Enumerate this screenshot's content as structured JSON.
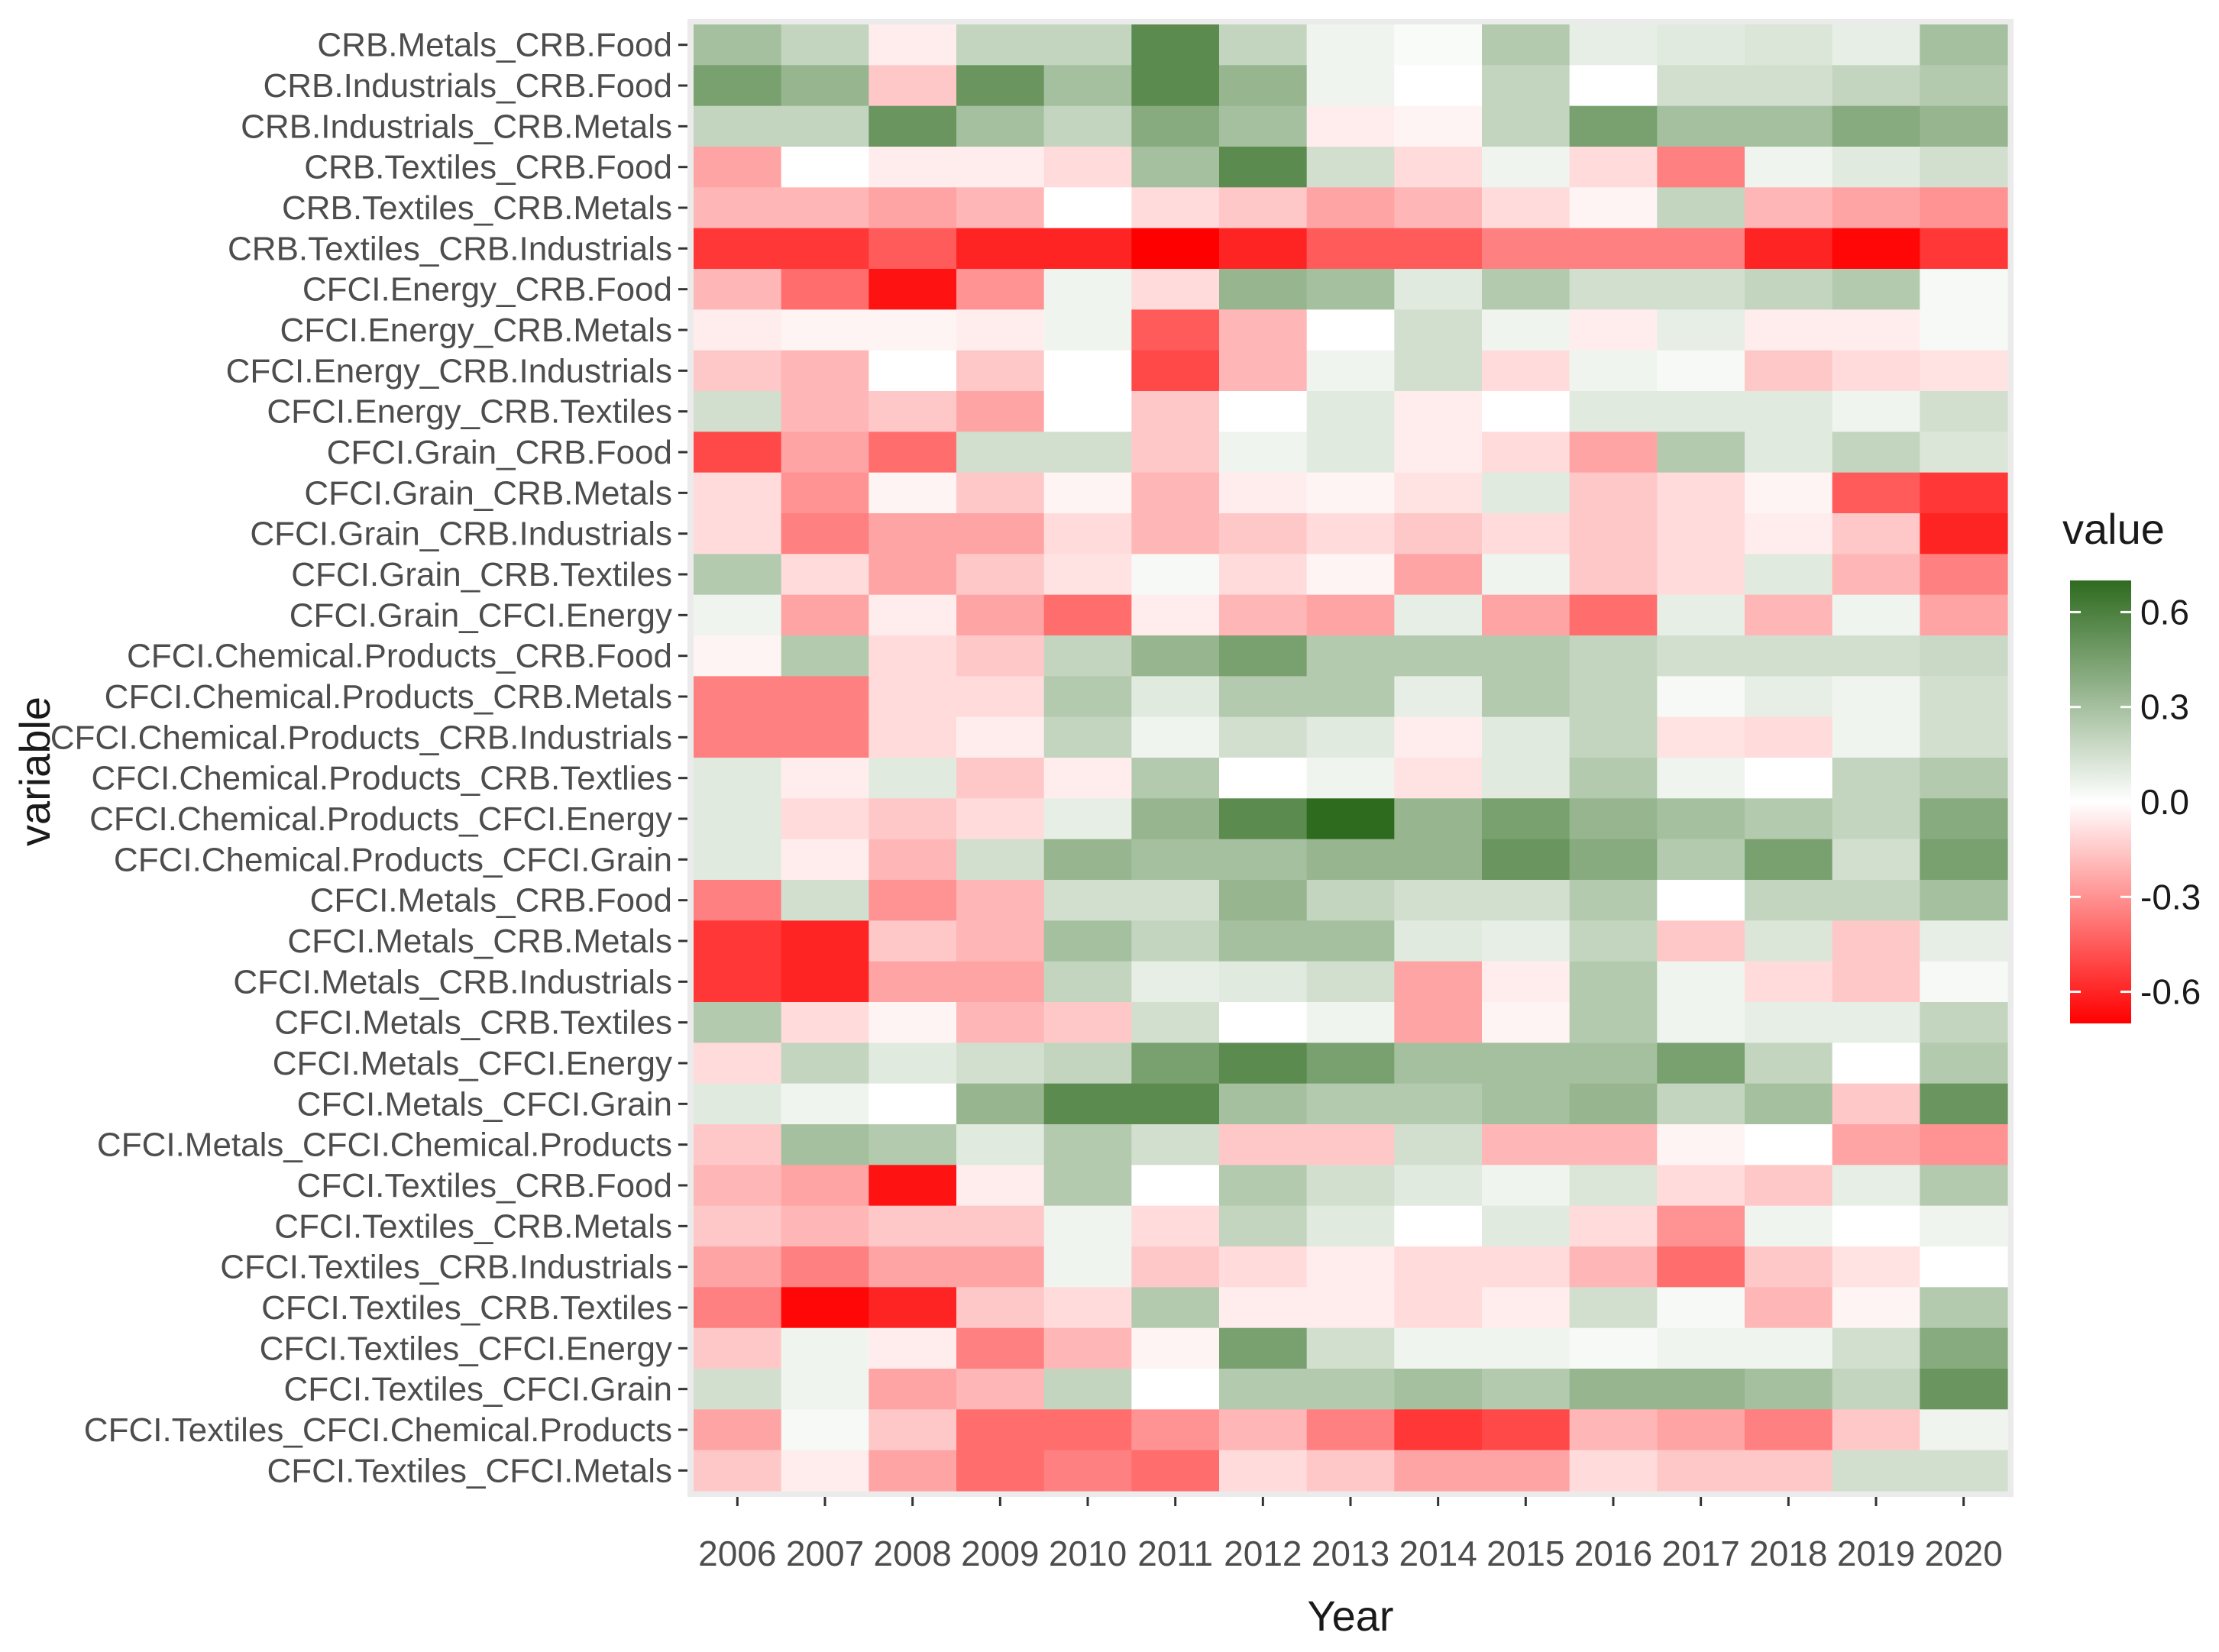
{
  "chart_data": {
    "type": "heatmap",
    "xlabel": "Year",
    "ylabel": "variable",
    "legend_title": "value",
    "legend_position": "right",
    "colorscale": {
      "low": "#ff0000",
      "mid": "#ffffff",
      "high": "#2e6b1f",
      "min": -0.7,
      "max": 0.7
    },
    "legend_ticks": [
      0.6,
      0.3,
      0.0,
      -0.3,
      -0.6
    ],
    "legend_tick_labels": [
      "0.6",
      "0.3",
      "0.0",
      "-0.3",
      "-0.6"
    ],
    "x": [
      "2006",
      "2007",
      "2008",
      "2009",
      "2010",
      "2011",
      "2012",
      "2013",
      "2014",
      "2015",
      "2016",
      "2017",
      "2018",
      "2019",
      "2020"
    ],
    "y": [
      "CRB.Metals_CRB.Food",
      "CRB.Industrials_CRB.Food",
      "CRB.Industrials_CRB.Metals",
      "CRB.Textiles_CRB.Food",
      "CRB.Textiles_CRB.Metals",
      "CRB.Textiles_CRB.Industrials",
      "CFCI.Energy_CRB.Food",
      "CFCI.Energy_CRB.Metals",
      "CFCI.Energy_CRB.Industrials",
      "CFCI.Energy_CRB.Textiles",
      "CFCI.Grain_CRB.Food",
      "CFCI.Grain_CRB.Metals",
      "CFCI.Grain_CRB.Industrials",
      "CFCI.Grain_CRB.Textiles",
      "CFCI.Grain_CFCI.Energy",
      "CFCI.Chemical.Products_CRB.Food",
      "CFCI.Chemical.Products_CRB.Metals",
      "CFCI.Chemical.Products_CRB.Industrials",
      "CFCI.Chemical.Products_CRB.Textlies",
      "CFCI.Chemical.Products_CFCI.Energy",
      "CFCI.Chemical.Products_CFCI.Grain",
      "CFCI.Metals_CRB.Food",
      "CFCI.Metals_CRB.Metals",
      "CFCI.Metals_CRB.Industrials",
      "CFCI.Metals_CRB.Textiles",
      "CFCI.Metals_CFCI.Energy",
      "CFCI.Metals_CFCI.Grain",
      "CFCI.Metals_CFCI.Chemical.Products",
      "CFCI.Textiles_CRB.Food",
      "CFCI.Textiles_CRB.Metals",
      "CFCI.Textiles_CRB.Industrials",
      "CFCI.Textiles_CRB.Textiles",
      "CFCI.Textiles_CFCI.Energy",
      "CFCI.Textiles_CFCI.Grain",
      "CFCI.Textiles_CFCI.Chemical.Products",
      "CFCI.Textiles_CFCI.Metals"
    ],
    "values": [
      [
        0.3,
        0.2,
        -0.05,
        0.2,
        0.2,
        0.55,
        0.2,
        0.05,
        0.02,
        0.25,
        0.08,
        0.1,
        0.12,
        0.08,
        0.3
      ],
      [
        0.45,
        0.35,
        -0.15,
        0.5,
        0.3,
        0.55,
        0.35,
        0.05,
        0.0,
        0.2,
        0.0,
        0.15,
        0.15,
        0.2,
        0.25
      ],
      [
        0.2,
        0.2,
        0.5,
        0.3,
        0.2,
        0.4,
        0.3,
        -0.05,
        -0.03,
        0.2,
        0.45,
        0.3,
        0.3,
        0.4,
        0.35
      ],
      [
        -0.25,
        0.0,
        -0.05,
        -0.05,
        -0.1,
        0.3,
        0.55,
        0.15,
        -0.1,
        0.05,
        -0.1,
        -0.35,
        0.05,
        0.1,
        0.15
      ],
      [
        -0.2,
        -0.2,
        -0.25,
        -0.2,
        0.0,
        -0.1,
        -0.15,
        -0.25,
        -0.2,
        -0.1,
        -0.03,
        0.2,
        -0.2,
        -0.25,
        -0.3
      ],
      [
        -0.55,
        -0.55,
        -0.45,
        -0.6,
        -0.6,
        -0.7,
        -0.6,
        -0.45,
        -0.45,
        -0.35,
        -0.35,
        -0.35,
        -0.6,
        -0.68,
        -0.55
      ],
      [
        -0.2,
        -0.4,
        -0.65,
        -0.3,
        0.05,
        -0.1,
        0.35,
        0.3,
        0.1,
        0.25,
        0.15,
        0.15,
        0.2,
        0.25,
        0.03
      ],
      [
        -0.05,
        -0.03,
        -0.03,
        -0.05,
        0.05,
        -0.45,
        -0.2,
        0.0,
        0.15,
        0.05,
        -0.05,
        0.08,
        -0.05,
        -0.05,
        0.03
      ],
      [
        -0.15,
        -0.2,
        0.0,
        -0.15,
        0.0,
        -0.5,
        -0.2,
        0.05,
        0.15,
        -0.1,
        0.05,
        0.03,
        -0.15,
        -0.1,
        -0.08
      ],
      [
        0.15,
        -0.2,
        -0.15,
        -0.25,
        0.0,
        -0.15,
        0.0,
        0.1,
        -0.05,
        0.0,
        0.1,
        0.1,
        0.1,
        0.05,
        0.15
      ],
      [
        -0.5,
        -0.25,
        -0.4,
        0.15,
        0.15,
        -0.15,
        0.05,
        0.1,
        -0.05,
        -0.1,
        -0.25,
        0.25,
        0.1,
        0.2,
        0.12
      ],
      [
        -0.1,
        -0.3,
        -0.03,
        -0.15,
        -0.03,
        -0.2,
        -0.05,
        -0.03,
        -0.08,
        0.1,
        -0.15,
        -0.1,
        -0.03,
        -0.45,
        -0.55
      ],
      [
        -0.1,
        -0.35,
        -0.25,
        -0.25,
        -0.1,
        -0.2,
        -0.15,
        -0.1,
        -0.15,
        -0.1,
        -0.15,
        -0.1,
        -0.05,
        -0.15,
        -0.6
      ],
      [
        0.25,
        -0.1,
        -0.25,
        -0.15,
        -0.08,
        0.03,
        -0.1,
        -0.03,
        -0.25,
        0.05,
        -0.15,
        -0.1,
        0.1,
        -0.2,
        -0.35
      ],
      [
        0.05,
        -0.25,
        -0.05,
        -0.25,
        -0.4,
        -0.05,
        -0.2,
        -0.25,
        0.08,
        -0.25,
        -0.4,
        0.08,
        -0.2,
        0.05,
        -0.25
      ],
      [
        -0.03,
        0.25,
        -0.1,
        -0.15,
        0.2,
        0.35,
        0.45,
        0.25,
        0.25,
        0.25,
        0.2,
        0.15,
        0.15,
        0.15,
        0.18
      ],
      [
        -0.35,
        -0.35,
        -0.1,
        -0.1,
        0.25,
        0.1,
        0.25,
        0.25,
        0.08,
        0.25,
        0.2,
        0.03,
        0.08,
        0.05,
        0.15
      ],
      [
        -0.35,
        -0.35,
        -0.1,
        -0.05,
        0.2,
        0.05,
        0.15,
        0.1,
        -0.05,
        0.1,
        0.2,
        -0.08,
        -0.1,
        0.05,
        0.15
      ],
      [
        0.1,
        -0.05,
        0.1,
        -0.15,
        -0.05,
        0.25,
        0.0,
        0.05,
        -0.08,
        0.1,
        0.25,
        0.05,
        0.0,
        0.2,
        0.25
      ],
      [
        0.1,
        -0.1,
        -0.15,
        -0.1,
        0.08,
        0.35,
        0.55,
        0.7,
        0.35,
        0.45,
        0.35,
        0.3,
        0.25,
        0.2,
        0.4
      ],
      [
        0.1,
        -0.05,
        -0.2,
        0.15,
        0.35,
        0.3,
        0.3,
        0.35,
        0.35,
        0.5,
        0.4,
        0.25,
        0.45,
        0.15,
        0.45
      ],
      [
        -0.35,
        0.15,
        -0.3,
        -0.2,
        0.15,
        0.15,
        0.35,
        0.2,
        0.15,
        0.15,
        0.25,
        0.0,
        0.2,
        0.2,
        0.3
      ],
      [
        -0.55,
        -0.6,
        -0.15,
        -0.2,
        0.3,
        0.2,
        0.3,
        0.3,
        0.1,
        0.08,
        0.2,
        -0.15,
        0.12,
        -0.15,
        0.08
      ],
      [
        -0.55,
        -0.6,
        -0.25,
        -0.25,
        0.2,
        0.08,
        0.1,
        0.15,
        -0.25,
        -0.05,
        0.25,
        0.05,
        -0.1,
        -0.15,
        0.03
      ],
      [
        0.25,
        -0.1,
        -0.03,
        -0.2,
        -0.15,
        0.15,
        0.0,
        0.05,
        -0.25,
        -0.03,
        0.25,
        0.05,
        0.08,
        0.08,
        0.2
      ],
      [
        -0.1,
        0.2,
        0.1,
        0.15,
        0.2,
        0.45,
        0.55,
        0.45,
        0.3,
        0.3,
        0.3,
        0.45,
        0.2,
        0.0,
        0.25
      ],
      [
        0.1,
        0.05,
        0.0,
        0.35,
        0.55,
        0.55,
        0.3,
        0.25,
        0.25,
        0.3,
        0.35,
        0.2,
        0.3,
        -0.15,
        0.5
      ],
      [
        -0.15,
        0.3,
        0.25,
        0.1,
        0.25,
        0.15,
        -0.15,
        -0.15,
        0.15,
        -0.2,
        -0.2,
        -0.03,
        0.0,
        -0.25,
        -0.3
      ],
      [
        -0.2,
        -0.25,
        -0.65,
        -0.05,
        0.25,
        0.0,
        0.25,
        0.15,
        0.1,
        0.05,
        0.12,
        -0.1,
        -0.15,
        0.08,
        0.25
      ],
      [
        -0.15,
        -0.2,
        -0.15,
        -0.15,
        0.05,
        -0.1,
        0.2,
        0.1,
        0.0,
        0.1,
        -0.1,
        -0.3,
        0.05,
        0.0,
        0.05
      ],
      [
        -0.25,
        -0.35,
        -0.25,
        -0.25,
        0.05,
        -0.15,
        -0.1,
        -0.05,
        -0.1,
        -0.1,
        -0.2,
        -0.4,
        -0.15,
        -0.08,
        0.0
      ],
      [
        -0.35,
        -0.68,
        -0.6,
        -0.15,
        -0.1,
        0.25,
        -0.05,
        -0.05,
        -0.1,
        -0.05,
        0.15,
        0.03,
        -0.2,
        -0.03,
        0.25
      ],
      [
        -0.15,
        0.05,
        -0.05,
        -0.35,
        -0.2,
        -0.03,
        0.45,
        0.15,
        0.05,
        0.05,
        0.03,
        0.05,
        0.05,
        0.15,
        0.4
      ],
      [
        0.15,
        0.05,
        -0.25,
        -0.2,
        0.2,
        0.0,
        0.25,
        0.25,
        0.3,
        0.25,
        0.35,
        0.35,
        0.3,
        0.2,
        0.5
      ],
      [
        -0.25,
        0.03,
        -0.15,
        -0.4,
        -0.4,
        -0.3,
        -0.2,
        -0.35,
        -0.55,
        -0.5,
        -0.2,
        -0.25,
        -0.35,
        -0.15,
        0.05
      ],
      [
        -0.15,
        -0.05,
        -0.25,
        -0.4,
        -0.35,
        -0.4,
        -0.1,
        -0.15,
        -0.25,
        -0.25,
        -0.1,
        -0.15,
        -0.15,
        0.15,
        0.15
      ]
    ]
  }
}
